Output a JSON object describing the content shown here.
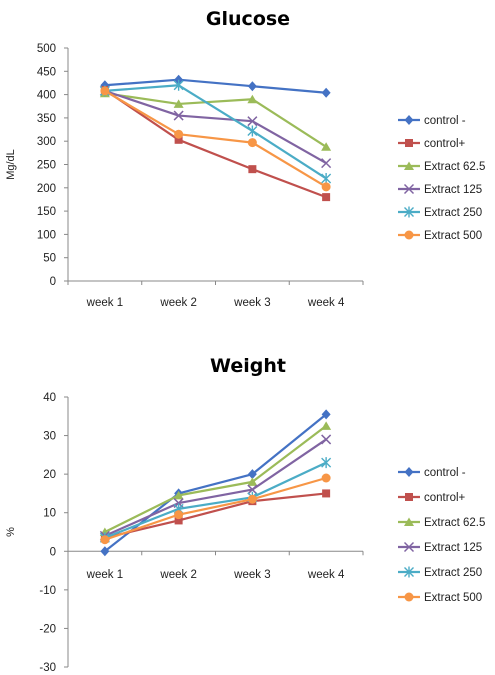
{
  "chart_data": [
    {
      "type": "line",
      "title": "Glucose",
      "ylabel": "Mg/dL",
      "xlabel": "",
      "categories": [
        "week 1",
        "week 2",
        "week 3",
        "week 4"
      ],
      "ylim": [
        0,
        500
      ],
      "yticks": [
        0,
        50,
        100,
        150,
        200,
        250,
        300,
        350,
        400,
        450,
        500
      ],
      "grid": false,
      "legend_position": "right",
      "series": [
        {
          "name": "control -",
          "color": "#4472C4",
          "marker": "diamond",
          "values": [
            420,
            432,
            418,
            404
          ]
        },
        {
          "name": "control+",
          "color": "#C0504D",
          "marker": "square",
          "values": [
            410,
            303,
            240,
            180
          ]
        },
        {
          "name": "Extract 62.5",
          "color": "#9BBB59",
          "marker": "triangle",
          "values": [
            403,
            380,
            390,
            288
          ]
        },
        {
          "name": "Extract 125",
          "color": "#8064A2",
          "marker": "x",
          "values": [
            408,
            355,
            343,
            253
          ]
        },
        {
          "name": "Extract 250",
          "color": "#4BACC6",
          "marker": "star",
          "values": [
            408,
            420,
            322,
            220
          ]
        },
        {
          "name": "Extract 500",
          "color": "#F79646",
          "marker": "circle",
          "values": [
            408,
            315,
            297,
            202
          ]
        }
      ]
    },
    {
      "type": "line",
      "title": "Weight",
      "ylabel": "%",
      "xlabel": "",
      "categories": [
        "week 1",
        "week 2",
        "week 3",
        "week 4"
      ],
      "ylim": [
        -30,
        40
      ],
      "yticks": [
        -30,
        -20,
        -10,
        0,
        10,
        20,
        30,
        40
      ],
      "grid": false,
      "legend_position": "right",
      "series": [
        {
          "name": "control -",
          "color": "#4472C4",
          "marker": "diamond",
          "values": [
            0,
            15,
            20,
            35.5
          ]
        },
        {
          "name": "control+",
          "color": "#C0504D",
          "marker": "square",
          "values": [
            3.5,
            8,
            13,
            15
          ]
        },
        {
          "name": "Extract 62.5",
          "color": "#9BBB59",
          "marker": "triangle",
          "values": [
            5,
            14.5,
            18,
            32.5
          ]
        },
        {
          "name": "Extract 125",
          "color": "#8064A2",
          "marker": "x",
          "values": [
            4,
            12.5,
            16,
            29
          ]
        },
        {
          "name": "Extract 250",
          "color": "#4BACC6",
          "marker": "star",
          "values": [
            3.5,
            11,
            14,
            23
          ]
        },
        {
          "name": "Extract 500",
          "color": "#F79646",
          "marker": "circle",
          "values": [
            3,
            9.5,
            13.5,
            19
          ]
        }
      ]
    }
  ]
}
